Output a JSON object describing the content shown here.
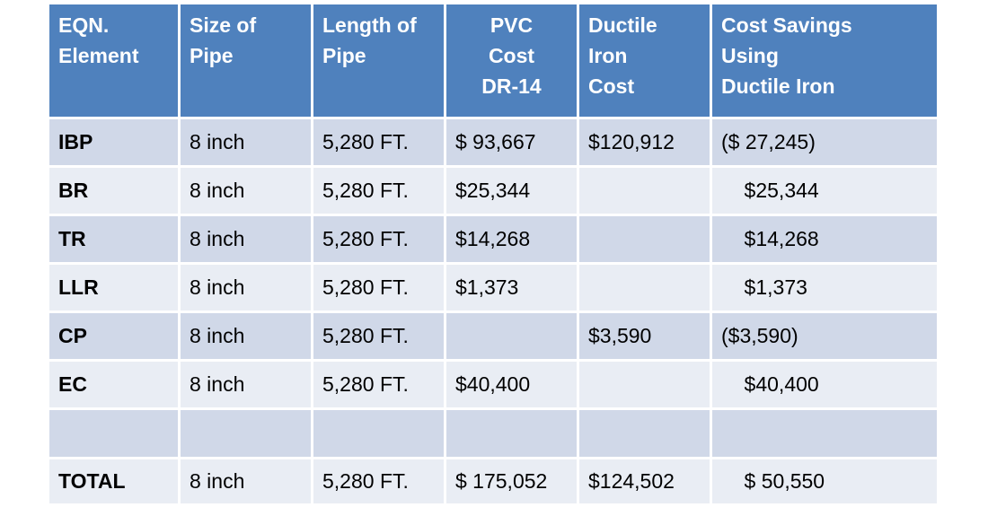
{
  "table": {
    "headers": [
      "EQN.\nElement",
      "Size of\nPipe",
      "Length of\nPipe",
      "PVC\nCost\nDR-14",
      "Ductile\nIron\nCost",
      "Cost Savings\nUsing\nDuctile Iron"
    ],
    "rows": [
      [
        "IBP",
        "8 inch",
        "5,280 FT.",
        "$ 93,667",
        "$120,912",
        "($ 27,245)"
      ],
      [
        "BR",
        "8 inch",
        "5,280 FT.",
        "$25,344",
        "",
        "    $25,344"
      ],
      [
        "TR",
        "8 inch",
        "5,280 FT.",
        "$14,268",
        "",
        "    $14,268"
      ],
      [
        "LLR",
        "8 inch",
        "5,280 FT.",
        "$1,373",
        "",
        "    $1,373"
      ],
      [
        "CP",
        "8 inch",
        "5,280 FT.",
        "",
        "$3,590",
        "($3,590)"
      ],
      [
        "EC",
        "8 inch",
        "5,280 FT.",
        "$40,400",
        "",
        "    $40,400"
      ],
      [
        "",
        "",
        "",
        "",
        "",
        ""
      ],
      [
        "TOTAL",
        "8 inch",
        "5,280 FT.",
        "$ 175,052",
        "$124,502",
        "    $ 50,550"
      ]
    ]
  },
  "colors": {
    "header_bg": "#4f81bd",
    "row_dark": "#d0d8e8",
    "row_light": "#e9edf4"
  }
}
